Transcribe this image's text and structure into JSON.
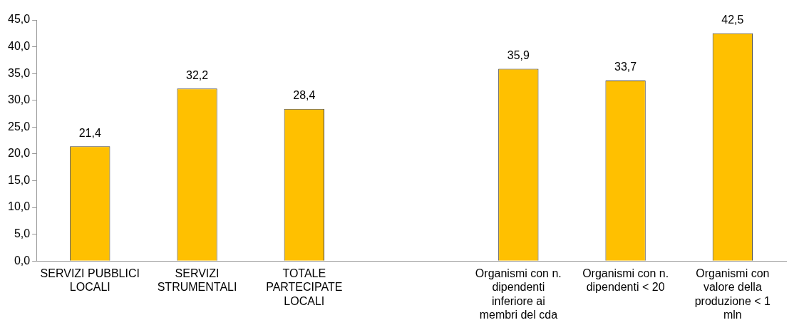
{
  "chart_data": {
    "type": "bar",
    "categories": [
      "SERVIZI PUBBLICI LOCALI",
      "SERVIZI STRUMENTALI",
      "TOTALE PARTECIPATE LOCALI",
      null,
      "Organismi con n. dipendenti inferiore ai membri del cda",
      "Organismi con n. dipendenti < 20",
      "Organismi con valore della produzione < 1 mln"
    ],
    "values": [
      21.4,
      32.2,
      28.4,
      null,
      35.9,
      33.7,
      42.5
    ],
    "value_labels": [
      "21,4",
      "32,2",
      "28,4",
      null,
      "35,9",
      "33,7",
      "42,5"
    ],
    "color": "#ffc000",
    "ylim": [
      0,
      45
    ],
    "yticks": [
      {
        "value": 0,
        "label": "0,0"
      },
      {
        "value": 5,
        "label": "5,0"
      },
      {
        "value": 10,
        "label": "10,0"
      },
      {
        "value": 15,
        "label": "15,0"
      },
      {
        "value": 20,
        "label": "20,0"
      },
      {
        "value": 25,
        "label": "25,0"
      },
      {
        "value": 30,
        "label": "30,0"
      },
      {
        "value": 35,
        "label": "35,0"
      },
      {
        "value": 40,
        "label": "40,0"
      },
      {
        "value": 45,
        "label": "45,0"
      }
    ],
    "grid": false,
    "legend": false
  }
}
